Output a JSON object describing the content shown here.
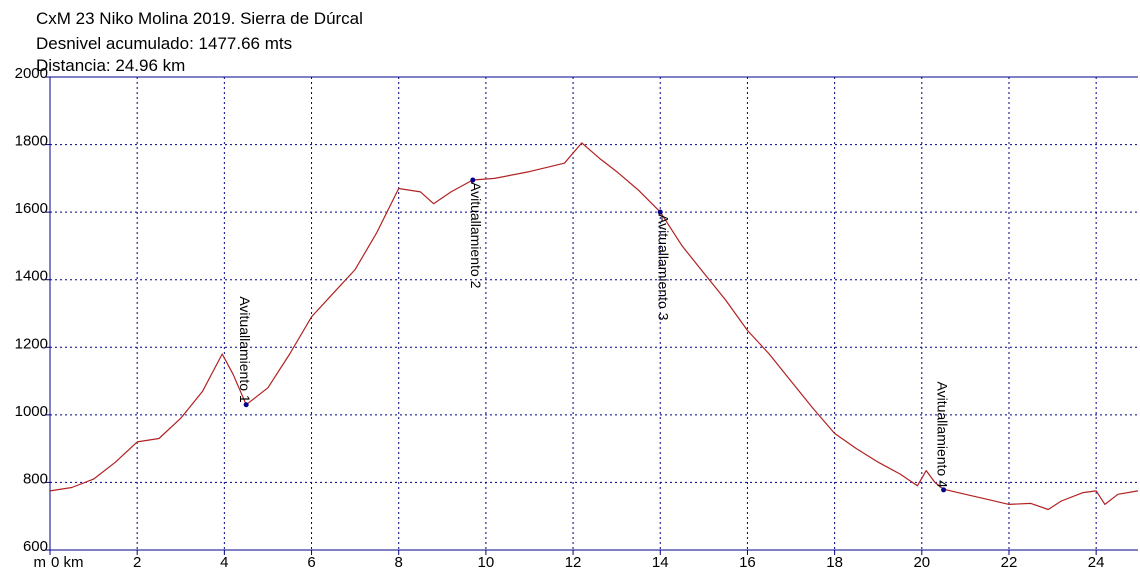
{
  "chart_data": {
    "type": "line",
    "title": "CxM 23 Niko Molina 2019. Sierra de Dúrcal",
    "subtitle_lines": [
      "Desnivel acumulado: 1477.66 mts",
      "Distancia: 24.96 km"
    ],
    "xlabel_prefix": "m",
    "x_unit": "km",
    "xlim": [
      0,
      24.96
    ],
    "ylim": [
      600,
      2000
    ],
    "x_ticks": [
      0,
      2,
      4,
      6,
      8,
      10,
      12,
      14,
      16,
      18,
      20,
      22,
      24
    ],
    "x_tick_labels": [
      "0 km",
      "2",
      "4",
      "6",
      "8",
      "10",
      "12",
      "14",
      "16",
      "18",
      "20",
      "22",
      "24"
    ],
    "y_ticks": [
      600,
      800,
      1000,
      1200,
      1400,
      1600,
      1800,
      2000
    ],
    "y_tick_labels": [
      "600",
      "800",
      "1000",
      "1200",
      "1400",
      "1600",
      "1800",
      "2000"
    ],
    "grid": true,
    "colors": {
      "line": "#b22222",
      "marker": "#00008b",
      "axis": "#00008b",
      "grid": "#00008b"
    },
    "series": [
      {
        "x": [
          0,
          0.5,
          1,
          1.5,
          2,
          2.5,
          3,
          3.5,
          3.95,
          4.2,
          4.5,
          5,
          5.5,
          6,
          6.5,
          7,
          7.5,
          8,
          8.5,
          8.8,
          9.2,
          9.7,
          10.2,
          11,
          11.8,
          12.2,
          12.6,
          13,
          13.5,
          14,
          14.5,
          15,
          15.5,
          16,
          16.5,
          17,
          17.5,
          18,
          18.5,
          19,
          19.5,
          19.9,
          20.1,
          20.3,
          20.5,
          21,
          21.5,
          22,
          22.5,
          22.9,
          23.2,
          23.7,
          24,
          24.2,
          24.5,
          24.96
        ],
        "y": [
          775,
          785,
          810,
          860,
          920,
          930,
          990,
          1070,
          1180,
          1120,
          1030,
          1080,
          1180,
          1290,
          1360,
          1430,
          1540,
          1670,
          1660,
          1625,
          1660,
          1695,
          1700,
          1720,
          1745,
          1805,
          1760,
          1720,
          1665,
          1600,
          1500,
          1420,
          1340,
          1250,
          1180,
          1100,
          1020,
          945,
          900,
          860,
          825,
          790,
          835,
          800,
          780,
          765,
          750,
          735,
          738,
          720,
          745,
          770,
          775,
          735,
          765,
          775
        ]
      }
    ],
    "annotations": [
      {
        "label": "Avituallamiento 1",
        "x": 4.5,
        "y": 1030
      },
      {
        "label": "Avituallamiento 2",
        "x": 9.7,
        "y": 1695
      },
      {
        "label": "Avituallamiento 3",
        "x": 14.0,
        "y": 1600
      },
      {
        "label": "Avituallamiento 4",
        "x": 20.5,
        "y": 778
      }
    ]
  }
}
